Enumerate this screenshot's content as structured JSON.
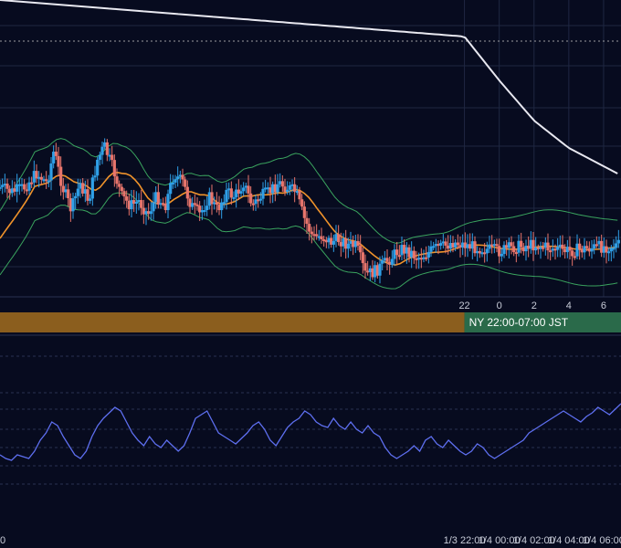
{
  "colors": {
    "background": "#070b1f",
    "grid": "#1f2742",
    "grid_dotted": "#2a3250",
    "up_candle": "#2fa0e8",
    "down_candle": "#e8756c",
    "bollinger_band": "#3aa35e",
    "moving_average": "#f0932b",
    "long_moving_average": "#e8e8f0",
    "rsi_line": "#5e6ff0",
    "session_tokyo": "#8b5e1e",
    "session_ny": "#2a6a4a",
    "reference_line": "#c0c0c0"
  },
  "sessions": [
    {
      "name": "tokyo",
      "label": "",
      "start_hour": -4.7,
      "end_hour": 22.0
    },
    {
      "name": "new_york",
      "label": "NY 22:00-07:00 JST",
      "start_hour": 22.0,
      "end_hour": 31.0
    }
  ],
  "chart_data": [
    {
      "type": "candlestick",
      "title": "",
      "x_range_hours": [
        -4.7,
        31.0
      ],
      "ylim": [
        0,
        100
      ],
      "x_tick_labels": [
        {
          "hour": 22,
          "label": "22"
        },
        {
          "hour": 24,
          "label": "0"
        },
        {
          "hour": 26,
          "label": "2"
        },
        {
          "hour": 28,
          "label": "4"
        },
        {
          "hour": 30,
          "label": "6"
        }
      ],
      "reference_level": 93,
      "ma_points": [
        [
          -4.7,
          63
        ],
        [
          -3.8,
          57
        ],
        [
          -2.6,
          53
        ],
        [
          -1.5,
          51
        ],
        [
          -0.5,
          48
        ],
        [
          0.5,
          45
        ],
        [
          1.5,
          42
        ],
        [
          2.5,
          39
        ],
        [
          3.5,
          36
        ],
        [
          4.5,
          33
        ],
        [
          5.5,
          31
        ],
        [
          6.5,
          28
        ],
        [
          7.0,
          27
        ],
        [
          7.5,
          25
        ],
        [
          8.0,
          25
        ],
        [
          8.5,
          24
        ],
        [
          9.0,
          24
        ],
        [
          9.5,
          24
        ],
        [
          10.0,
          24
        ],
        [
          10.5,
          24
        ],
        [
          11.0,
          23
        ],
        [
          11.5,
          22
        ],
        [
          12.0,
          22
        ],
        [
          12.5,
          21
        ],
        [
          13.0,
          19
        ],
        [
          13.5,
          18
        ],
        [
          14.0,
          18
        ],
        [
          14.5,
          17
        ],
        [
          15.0,
          16
        ],
        [
          15.5,
          14
        ],
        [
          16.0,
          12
        ],
        [
          16.5,
          10
        ],
        [
          17.0,
          9
        ],
        [
          17.5,
          7
        ],
        [
          18.0,
          6
        ],
        [
          18.5,
          5
        ],
        [
          19.0,
          5
        ],
        [
          19.5,
          5
        ],
        [
          20.0,
          4
        ],
        [
          20.5,
          2
        ]
      ],
      "ma_full_hours": [
        -4.7,
        -2.6,
        -0.5,
        1.5,
        3.5,
        5.5,
        7.5,
        9.5,
        11.5,
        13.5,
        15.5,
        17.5,
        19.5,
        21.5,
        23.5,
        25.5,
        27.5,
        29.5,
        31.0
      ],
      "ma_full_values": [
        63,
        53,
        48,
        42,
        36,
        31,
        25,
        24,
        22,
        18,
        14,
        7,
        5,
        2,
        0,
        0,
        0,
        0,
        0
      ],
      "long_ma_hours": [
        -4.7,
        -3.0,
        -1.0,
        1.0,
        3.0,
        5.0,
        7.0,
        9.0,
        11.0,
        13.0,
        15.0,
        17.0,
        19.0,
        21.0,
        22.0,
        23.0,
        24.0,
        25.0,
        26.0,
        27.0,
        28.0,
        29.0,
        30.0,
        31.0
      ],
      "long_ma_values": [
        100,
        100,
        100,
        100,
        100,
        100,
        100,
        100,
        100,
        100,
        100,
        100,
        100,
        100,
        94,
        89,
        83,
        77,
        72,
        67,
        64,
        61,
        58,
        55
      ],
      "candles": []
    },
    {
      "type": "line",
      "name": "oscillator",
      "x_range_hours": [
        -4.7,
        31.0
      ],
      "ylim": [
        0,
        100
      ],
      "x_tick_labels": [
        {
          "hour": 22,
          "label": "1/3 22:00"
        },
        {
          "hour": 24,
          "label": "1/4 00:00"
        },
        {
          "hour": 26,
          "label": "1/4 02:00"
        },
        {
          "hour": 28,
          "label": "1/4 04:00"
        },
        {
          "hour": 30,
          "label": "1/4 06:00"
        }
      ],
      "values": [
        40,
        38,
        37,
        40,
        39,
        38,
        42,
        48,
        52,
        58,
        56,
        50,
        45,
        40,
        38,
        42,
        50,
        56,
        60,
        63,
        66,
        64,
        58,
        52,
        48,
        45,
        50,
        46,
        44,
        48,
        45,
        42,
        45,
        52,
        60,
        62,
        64,
        58,
        52,
        50,
        48,
        46,
        49,
        52,
        56,
        58,
        54,
        48,
        45,
        50,
        55,
        58,
        60,
        64,
        62,
        58,
        56,
        55,
        60,
        56,
        54,
        58,
        54,
        52,
        56,
        52,
        50,
        44,
        40,
        38,
        40,
        42,
        45,
        42,
        48,
        50,
        46,
        44,
        48,
        45,
        42,
        40,
        42,
        46,
        44,
        40,
        38,
        40,
        42,
        44,
        46,
        48,
        52,
        54,
        56,
        58,
        60,
        62,
        64,
        62,
        60,
        58,
        61,
        63,
        66,
        64,
        62,
        65,
        68
      ]
    }
  ]
}
